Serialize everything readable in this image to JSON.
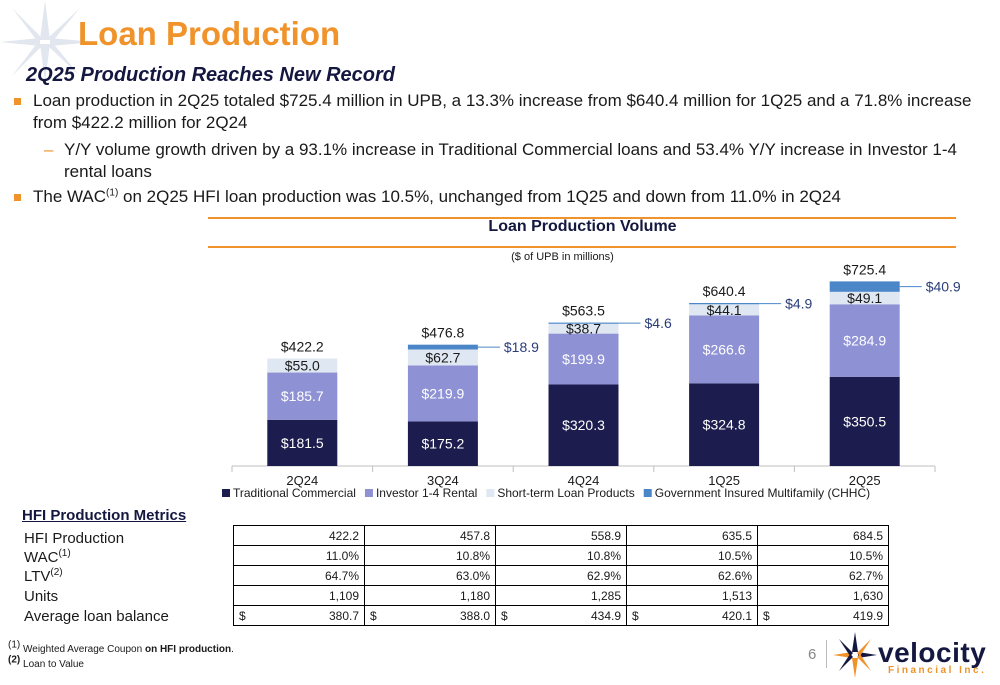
{
  "header": {
    "title": "Loan Production",
    "subtitle": "2Q25 Production Reaches New Record"
  },
  "bullets": [
    {
      "text": "Loan production in 2Q25 totaled $725.4 million in UPB, a 13.3% increase from $640.4 million for 1Q25 and a 71.8% increase from $422.2 million for 2Q24"
    },
    {
      "text": "Y/Y volume growth driven by a 93.1% increase in Traditional Commercial loans and 53.4% Y/Y increase in Investor 1-4 rental loans"
    },
    {
      "text_before": "The WAC",
      "sup": "(1)",
      "text_after": " on 2Q25 HFI loan production was 10.5%, unchanged from 1Q25 and down from 11.0% in 2Q24"
    }
  ],
  "chart_data": {
    "type": "bar",
    "stacked": true,
    "title": "Loan Production Volume",
    "subtitle": "($ of UPB in millions)",
    "categories": [
      "2Q24",
      "3Q24",
      "4Q24",
      "1Q25",
      "2Q25"
    ],
    "series": [
      {
        "name": "Traditional Commercial",
        "color": "#1c1c4e",
        "values": [
          181.5,
          175.2,
          320.3,
          324.8,
          350.5
        ],
        "labels": [
          "$181.5",
          "$175.2",
          "$320.3",
          "$324.8",
          "$350.5"
        ]
      },
      {
        "name": "Investor 1-4 Rental",
        "color": "#8e91d4",
        "values": [
          185.7,
          219.9,
          199.9,
          266.6,
          284.9
        ],
        "labels": [
          "$185.7",
          "$219.9",
          "$199.9",
          "$266.6",
          "$284.9"
        ]
      },
      {
        "name": "Short-term Loan Products",
        "color": "#dfe7f3",
        "values": [
          55.0,
          62.7,
          38.7,
          44.1,
          49.1
        ],
        "labels": [
          "$55.0",
          "$62.7",
          "$38.7",
          "$44.1",
          "$49.1"
        ]
      },
      {
        "name": "Government Insured Multifamily (CHHC)",
        "color": "#4a86c8",
        "values": [
          0,
          18.9,
          4.6,
          4.9,
          40.9
        ],
        "labels": [
          "",
          "$18.9",
          "$4.6",
          "$4.9",
          "$40.9"
        ]
      }
    ],
    "totals": [
      "$422.2",
      "$476.8",
      "$563.5",
      "$640.4",
      "$725.4"
    ],
    "legend_position": "bottom",
    "grid": false
  },
  "metrics": {
    "title": "HFI Production Metrics",
    "rows": [
      {
        "label": "HFI Production",
        "label_sup": "",
        "dollar": false,
        "values": [
          "422.2",
          "457.8",
          "558.9",
          "635.5",
          "684.5"
        ]
      },
      {
        "label": "WAC",
        "label_sup": "(1)",
        "dollar": false,
        "values": [
          "11.0%",
          "10.8%",
          "10.8%",
          "10.5%",
          "10.5%"
        ]
      },
      {
        "label": "LTV",
        "label_sup": "(2)",
        "dollar": false,
        "values": [
          "64.7%",
          "63.0%",
          "62.9%",
          "62.6%",
          "62.7%"
        ]
      },
      {
        "label": "Units",
        "label_sup": "",
        "dollar": false,
        "values": [
          "1,109",
          "1,180",
          "1,285",
          "1,513",
          "1,630"
        ]
      },
      {
        "label": "Average loan balance",
        "label_sup": "",
        "dollar": true,
        "dollar_sign": "$",
        "values": [
          "380.7",
          "388.0",
          "434.9",
          "420.1",
          "419.9"
        ]
      }
    ]
  },
  "footnotes": [
    {
      "mark": "(1)",
      "text": " Weighted Average Coupon ",
      "bold_text": "on HFI production",
      "tail": "."
    },
    {
      "mark": "(2)",
      "text": " Loan to Value"
    }
  ],
  "footer": {
    "page_number": "6",
    "logo_name": "velocity",
    "logo_sub": "Financial Inc.",
    "brand_color": "#f0932b",
    "navy": "#14173f"
  }
}
